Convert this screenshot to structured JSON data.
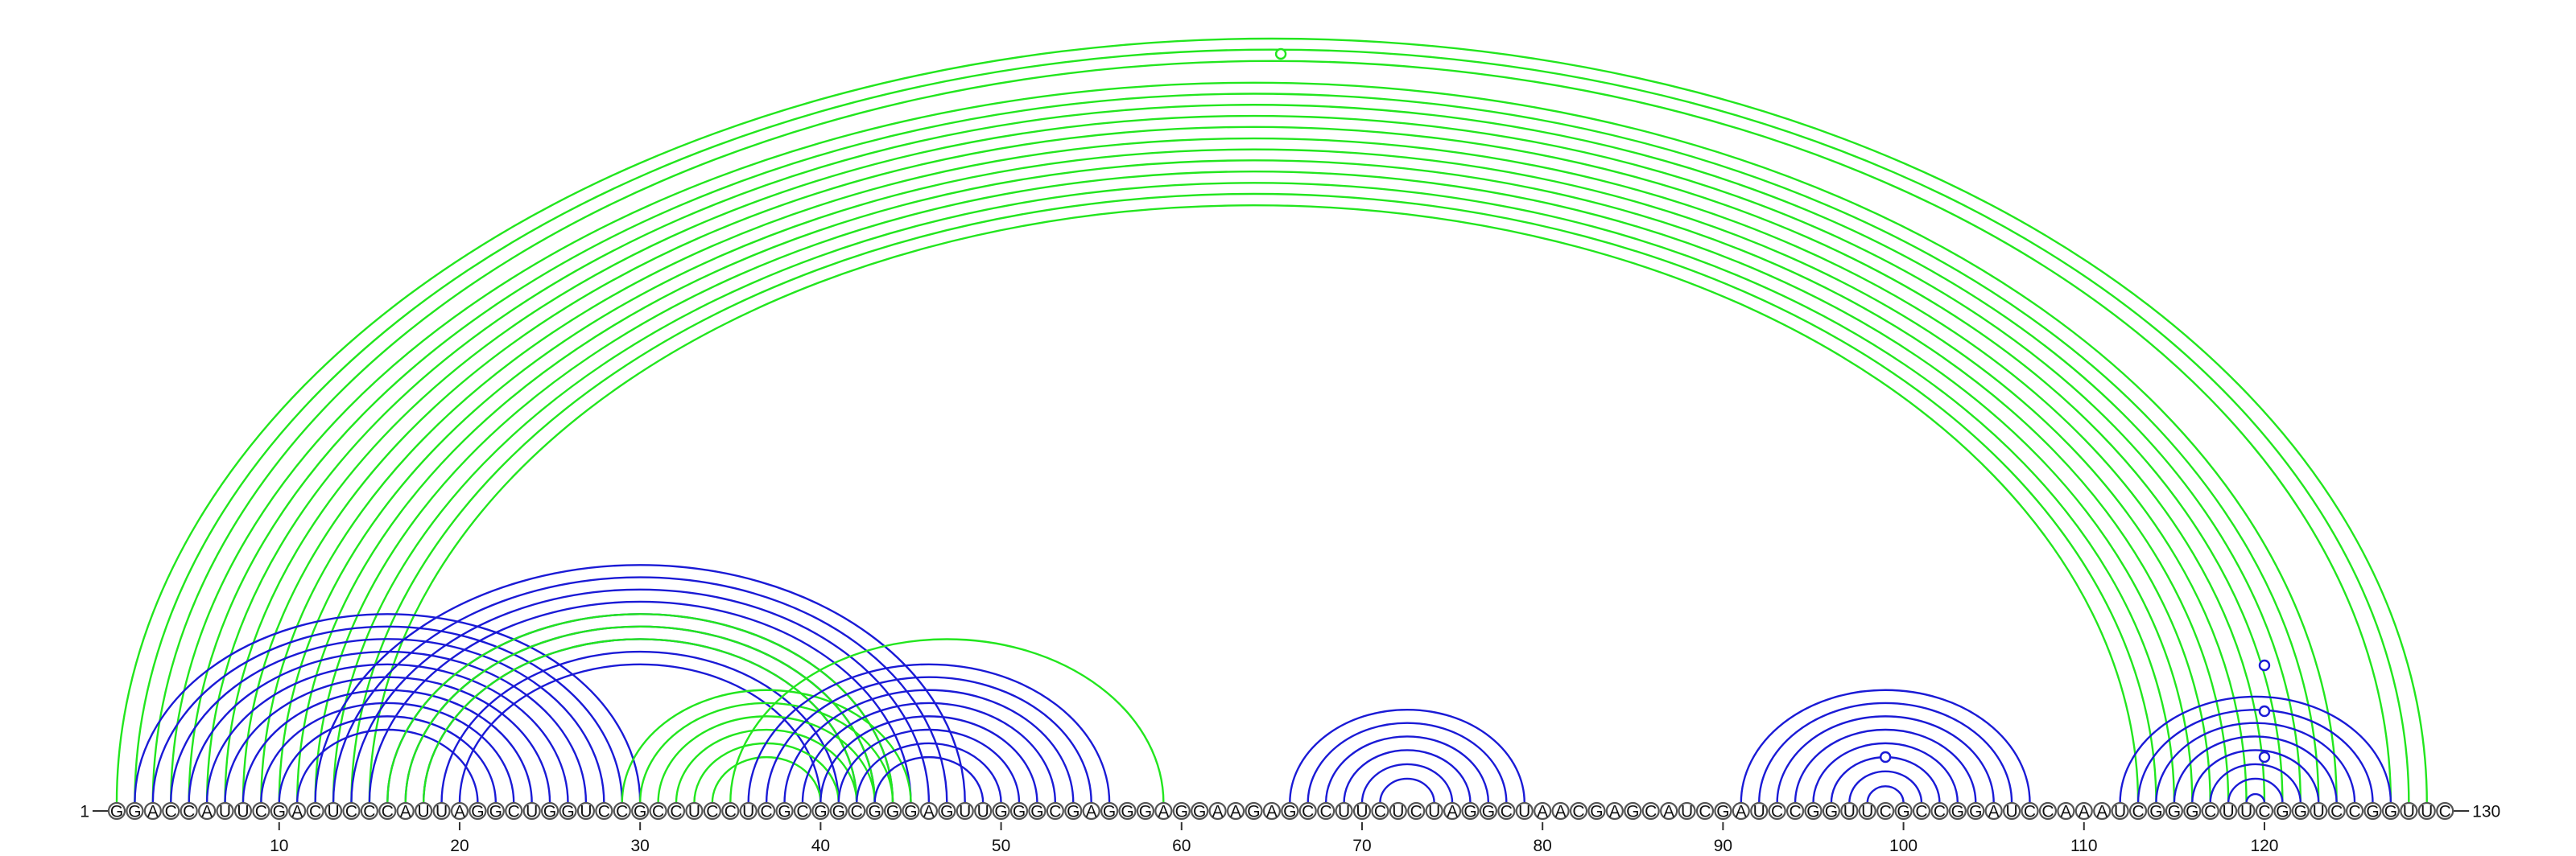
{
  "sequence": "GGACCAUUCGACUCCCAUUAGGCUGGUCCGCCUCCUCGCGGCGGGAGUUGGGCGAGGGAGGAAGAGCCUUCUCUAGGCUAACGAGCAUCGAUCCGGUUCGCCGGAUCCAAAUCGGGCUUCGGUCCGGUUC",
  "start_label": "1",
  "end_label": "130",
  "tick_labels": [
    "10",
    "20",
    "30",
    "40",
    "50",
    "60",
    "70",
    "80",
    "90",
    "100",
    "110",
    "120"
  ],
  "colors": {
    "primary_arcs": "#1a1ad6",
    "pseudoknot_arcs": "#22e61e"
  },
  "arc_groups": [
    {
      "color": "pseudoknot",
      "pairs": [
        [
          1,
          129
        ],
        [
          2,
          128
        ],
        [
          3,
          127
        ],
        [
          4,
          124
        ],
        [
          5,
          123
        ],
        [
          6,
          122
        ],
        [
          7,
          121
        ],
        [
          8,
          120
        ],
        [
          9,
          119
        ],
        [
          10,
          118
        ],
        [
          11,
          117
        ],
        [
          12,
          116
        ],
        [
          13,
          115
        ],
        [
          14,
          114
        ],
        [
          15,
          113
        ]
      ]
    },
    {
      "color": "primary",
      "pairs": [
        [
          2,
          30
        ],
        [
          3,
          29
        ],
        [
          4,
          28
        ],
        [
          5,
          27
        ],
        [
          6,
          26
        ],
        [
          7,
          25
        ],
        [
          8,
          24
        ],
        [
          9,
          23
        ],
        [
          10,
          22
        ],
        [
          11,
          21
        ]
      ]
    },
    {
      "color": "primary",
      "pairs": [
        [
          12,
          48
        ],
        [
          13,
          47
        ],
        [
          14,
          46
        ],
        [
          15,
          45
        ],
        [
          16,
          44
        ],
        [
          17,
          43
        ],
        [
          18,
          42
        ],
        [
          19,
          41
        ],
        [
          20,
          40
        ]
      ]
    },
    {
      "color": "pseudoknot",
      "pairs": [
        [
          16,
          44
        ],
        [
          17,
          43
        ],
        [
          18,
          42
        ]
      ]
    },
    {
      "color": "pseudoknot",
      "pairs": [
        [
          29,
          45
        ],
        [
          30,
          44
        ],
        [
          31,
          43
        ],
        [
          32,
          42
        ],
        [
          33,
          41
        ],
        [
          34,
          40
        ]
      ]
    },
    {
      "color": "pseudoknot",
      "pairs": [
        [
          35,
          59
        ]
      ]
    },
    {
      "color": "primary",
      "pairs": [
        [
          36,
          56
        ],
        [
          37,
          55
        ],
        [
          38,
          54
        ],
        [
          39,
          53
        ],
        [
          40,
          52
        ],
        [
          41,
          51
        ],
        [
          42,
          50
        ],
        [
          43,
          49
        ]
      ]
    },
    {
      "color": "primary",
      "pairs": [
        [
          66,
          79
        ],
        [
          67,
          78
        ],
        [
          68,
          77
        ],
        [
          69,
          76
        ],
        [
          70,
          75
        ],
        [
          71,
          74
        ]
      ]
    },
    {
      "color": "primary",
      "pairs": [
        [
          91,
          107
        ],
        [
          92,
          106
        ],
        [
          93,
          105
        ],
        [
          94,
          104
        ],
        [
          95,
          103
        ],
        [
          96,
          102
        ],
        [
          97,
          101
        ],
        [
          98,
          100
        ]
      ]
    },
    {
      "color": "primary",
      "pairs": [
        [
          112,
          127
        ],
        [
          113,
          126
        ],
        [
          114,
          125
        ],
        [
          115,
          124
        ],
        [
          116,
          123
        ],
        [
          117,
          122
        ],
        [
          118,
          121
        ],
        [
          119,
          120
        ]
      ]
    }
  ],
  "loop_markers": [
    {
      "position": 65.5,
      "height_fraction": 0.98,
      "color": "pseudoknot"
    },
    {
      "position": 99,
      "height_fraction": 0.06,
      "color": "primary"
    },
    {
      "position": 120,
      "height_fraction": 0.18,
      "color": "primary"
    },
    {
      "position": 120,
      "height_fraction": 0.12,
      "color": "primary"
    },
    {
      "position": 120,
      "height_fraction": 0.06,
      "color": "primary"
    }
  ]
}
